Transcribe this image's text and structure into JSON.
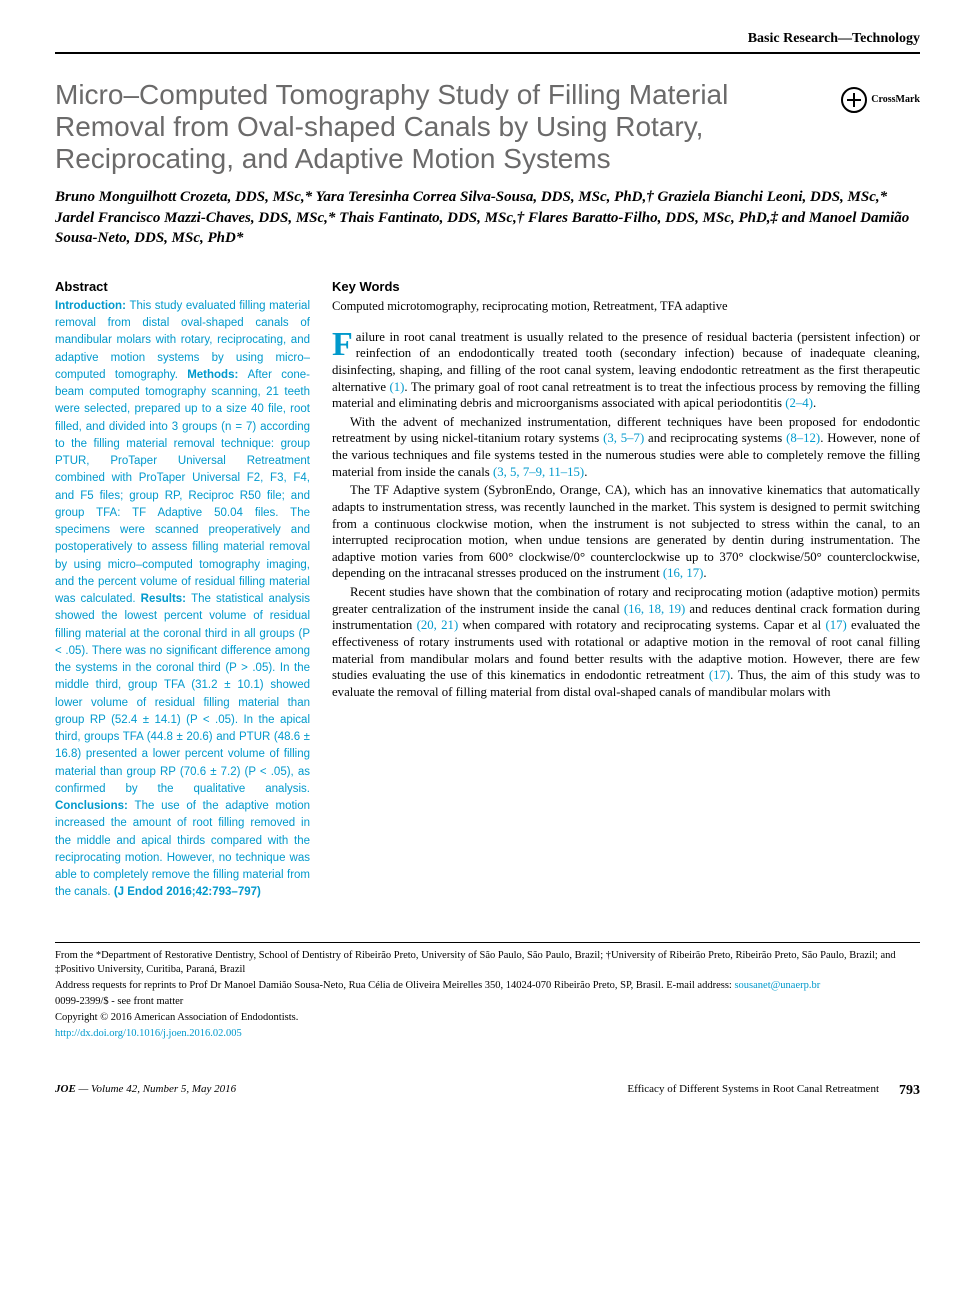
{
  "header": {
    "section_label": "Basic Research—Technology"
  },
  "title": "Micro–Computed Tomography Study of Filling Material Removal from Oval-shaped Canals by Using Rotary, Reciprocating, and Adaptive Motion Systems",
  "crossmark_label": "CrossMark",
  "authors": "Bruno Monguilhott Crozeta, DDS, MSc,* Yara Teresinha Correa Silva-Sousa, DDS, MSc, PhD,† Graziela Bianchi Leoni, DDS, MSc,* Jardel Francisco Mazzi-Chaves, DDS, MSc,* Thais Fantinato, DDS, MSc,† Flares Baratto-Filho, DDS, MSc, PhD,‡ and Manoel Damião Sousa-Neto, DDS, MSc, PhD*",
  "abstract": {
    "heading": "Abstract",
    "intro_label": "Introduction: ",
    "intro_text": "This study evaluated filling material removal from distal oval-shaped canals of mandibular molars with rotary, reciprocating, and adaptive motion systems by using micro–computed tomography. ",
    "methods_label": "Methods: ",
    "methods_text": "After cone-beam computed tomography scanning, 21 teeth were selected, prepared up to a size 40 file, root filled, and divided into 3 groups (n = 7) according to the filling material removal technique: group PTUR, ProTaper Universal Retreatment combined with ProTaper Universal F2, F3, F4, and F5 files; group RP, Reciproc R50 file; and group TFA: TF Adaptive 50.04 files. The specimens were scanned preoperatively and postoperatively to assess filling material removal by using micro–computed tomography imaging, and the percent volume of residual filling material was calculated. ",
    "results_label": "Results: ",
    "results_text": "The statistical analysis showed the lowest percent volume of residual filling material at the coronal third in all groups (P < .05). There was no significant difference among the systems in the coronal third (P > .05). In the middle third, group TFA (31.2 ± 10.1) showed lower volume of residual filling material than group RP (52.4 ± 14.1) (P < .05). In the apical third, groups TFA (44.8 ± 20.6) and PTUR (48.6 ± 16.8) presented a lower percent volume of filling material than group RP (70.6 ± 7.2) (P < .05), as confirmed by the qualitative analysis. ",
    "conclusions_label": "Conclusions: ",
    "conclusions_text": "The use of the adaptive motion increased the amount of root filling removed in the middle and apical thirds compared with the reciprocating motion. However, no technique was able to completely remove the filling material from the canals. ",
    "citation": "(J Endod 2016;42:793–797)"
  },
  "keywords": {
    "heading": "Key Words",
    "text": "Computed microtomography, reciprocating motion, Retreatment, TFA adaptive"
  },
  "body": {
    "p1_dropcap": "F",
    "p1": "ailure in root canal treatment is usually related to the presence of residual bacteria (persistent infection) or reinfection of an endodontically treated tooth (secondary infection) because of inadequate cleaning, disinfecting, shaping, and filling of the root canal system, leaving endodontic retreatment as the first therapeutic alternative ",
    "p1_ref1": "(1)",
    "p1_b": ". The primary goal of root canal retreatment is to treat the infectious process by removing the filling material and eliminating debris and microorganisms associated with apical periodontitis ",
    "p1_ref2": "(2–4)",
    "p1_c": ".",
    "p2a": "With the advent of mechanized instrumentation, different techniques have been proposed for endodontic retreatment by using nickel-titanium rotary systems ",
    "p2_ref1": "(3, 5–7)",
    "p2b": " and reciprocating systems ",
    "p2_ref2": "(8–12)",
    "p2c": ". However, none of the various techniques and file systems tested in the numerous studies were able to completely remove the filling material from inside the canals ",
    "p2_ref3": "(3, 5, 7–9, 11–15)",
    "p2d": ".",
    "p3a": "The TF Adaptive system (SybronEndo, Orange, CA), which has an innovative kinematics that automatically adapts to instrumentation stress, was recently launched in the market. This system is designed to permit switching from a continuous clockwise motion, when the instrument is not subjected to stress within the canal, to an interrupted reciprocation motion, when undue tensions are generated by dentin during instrumentation. The adaptive motion varies from 600° clockwise/0° counterclockwise up to 370° clockwise/50° counterclockwise, depending on the intracanal stresses produced on the instrument ",
    "p3_ref1": "(16, 17)",
    "p3b": ".",
    "p4a": "Recent studies have shown that the combination of rotary and reciprocating motion (adaptive motion) permits greater centralization of the instrument inside the canal ",
    "p4_ref1": "(16, 18, 19)",
    "p4b": " and reduces dentinal crack formation during instrumentation ",
    "p4_ref2": "(20, 21)",
    "p4c": " when compared with rotatory and reciprocating systems. Capar et al ",
    "p4_ref3": "(17)",
    "p4d": " evaluated the effectiveness of rotary instruments used with rotational or adaptive motion in the removal of root canal filling material from mandibular molars and found better results with the adaptive motion. However, there are few studies evaluating the use of this kinematics in endodontic retreatment ",
    "p4_ref4": "(17)",
    "p4e": ". Thus, the aim of this study was to evaluate the removal of filling material from distal oval-shaped canals of mandibular molars with"
  },
  "footnotes": {
    "affil": "From the *Department of Restorative Dentistry, School of Dentistry of Ribeirão Preto, University of São Paulo, São Paulo, Brazil; †University of Ribeirão Preto, Ribeirão Preto, São Paulo, Brazil; and ‡Positivo University, Curitiba, Paraná, Brazil",
    "address": "Address requests for reprints to Prof Dr Manoel Damião Sousa-Neto, Rua Célia de Oliveira Meirelles 350, 14024-070 Ribeirão Preto, SP, Brasil. E-mail address: ",
    "email": "sousanet@unaerp.br",
    "issn": "0099-2399/$ - see front matter",
    "copyright": "Copyright © 2016 American Association of Endodontists.",
    "doi": "http://dx.doi.org/10.1016/j.joen.2016.02.005"
  },
  "footer": {
    "journal": "JOE ",
    "issue": "— Volume 42, Number 5, May 2016",
    "running_title": "Efficacy of Different Systems in Root Canal Retreatment",
    "page": "793"
  },
  "colors": {
    "accent": "#0099cc",
    "title_gray": "#6b6a6a",
    "text": "#000000",
    "background": "#ffffff"
  }
}
